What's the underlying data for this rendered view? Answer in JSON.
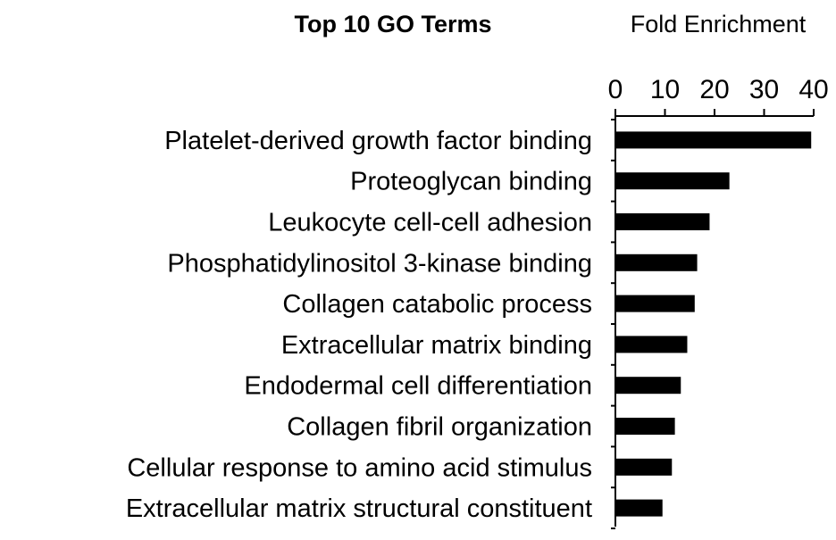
{
  "chart_data": {
    "type": "bar",
    "orientation": "horizontal",
    "title": "Top 10 GO Terms",
    "xlabel": "Fold Enrichment",
    "ylabel": "",
    "xlim": [
      0,
      40
    ],
    "xticks": [
      0,
      10,
      20,
      30,
      40
    ],
    "axis_position": "top",
    "grid": false,
    "bar_color": "#000000",
    "categories": [
      "Platelet-derived growth factor binding",
      "Proteoglycan binding",
      "Leukocyte cell-cell adhesion",
      "Phosphatidylinositol 3-kinase binding",
      "Collagen catabolic process",
      "Extracellular matrix binding",
      "Endodermal cell differentiation",
      "Collagen fibril organization",
      "Cellular response to amino acid stimulus",
      "Extracellular matrix structural constituent"
    ],
    "values": [
      39.5,
      23,
      19,
      16.5,
      16,
      14.5,
      13.2,
      12,
      11.4,
      9.5
    ]
  }
}
